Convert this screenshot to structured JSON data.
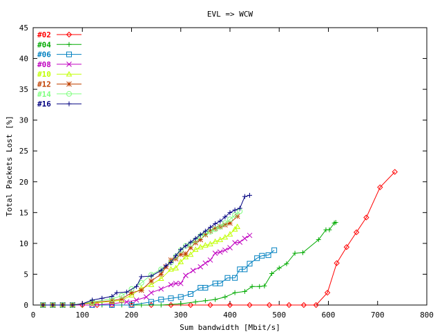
{
  "chart_data": {
    "type": "line",
    "title": "EVL => WCW",
    "xlabel": "Sum bandwidth [Mbit/s]",
    "ylabel": "Total Packets Lost [%]",
    "xlim": [
      0,
      800
    ],
    "ylim": [
      0,
      45
    ],
    "xticks": [
      0,
      100,
      200,
      300,
      400,
      500,
      600,
      700,
      800
    ],
    "yticks": [
      0,
      5,
      10,
      15,
      20,
      25,
      30,
      35,
      40,
      45
    ],
    "grid": false,
    "legend_position": "top-left",
    "series": [
      {
        "name": "#02",
        "color": "#ff0000",
        "marker": "diamond",
        "points": [
          [
            20,
            0
          ],
          [
            40,
            0
          ],
          [
            60,
            0
          ],
          [
            80,
            0
          ],
          [
            100,
            0
          ],
          [
            130,
            0
          ],
          [
            160,
            0
          ],
          [
            200,
            0
          ],
          [
            240,
            0
          ],
          [
            280,
            0
          ],
          [
            320,
            0
          ],
          [
            360,
            0
          ],
          [
            400,
            0
          ],
          [
            440,
            0
          ],
          [
            480,
            0
          ],
          [
            520,
            0
          ],
          [
            550,
            0
          ],
          [
            575,
            0
          ],
          [
            598,
            2
          ],
          [
            617,
            6.8
          ],
          [
            637,
            9.4
          ],
          [
            657,
            11.8
          ],
          [
            677,
            14.2
          ],
          [
            705,
            19.1
          ],
          [
            735,
            21.6
          ]
        ]
      },
      {
        "name": "#04",
        "color": "#00aa00",
        "marker": "plus",
        "points": [
          [
            20,
            0
          ],
          [
            40,
            0
          ],
          [
            60,
            0
          ],
          [
            80,
            0
          ],
          [
            100,
            0
          ],
          [
            140,
            0
          ],
          [
            180,
            0
          ],
          [
            220,
            0
          ],
          [
            260,
            0
          ],
          [
            300,
            0.2
          ],
          [
            330,
            0.5
          ],
          [
            350,
            0.7
          ],
          [
            370,
            0.9
          ],
          [
            390,
            1.3
          ],
          [
            410,
            2
          ],
          [
            430,
            2.2
          ],
          [
            445,
            3
          ],
          [
            460,
            3
          ],
          [
            470,
            3.1
          ],
          [
            485,
            5.1
          ],
          [
            500,
            6
          ],
          [
            515,
            6.7
          ],
          [
            532,
            8.4
          ],
          [
            548,
            8.5
          ],
          [
            580,
            10.6
          ],
          [
            595,
            12.2
          ],
          [
            602,
            12.2
          ],
          [
            612,
            13.3
          ],
          [
            615,
            13.4
          ]
        ]
      },
      {
        "name": "#06",
        "color": "#0080c0",
        "marker": "square",
        "points": [
          [
            20,
            0
          ],
          [
            40,
            0
          ],
          [
            60,
            0
          ],
          [
            80,
            0
          ],
          [
            120,
            0
          ],
          [
            160,
            0
          ],
          [
            200,
            0
          ],
          [
            240,
            0.5
          ],
          [
            260,
            0.9
          ],
          [
            280,
            1.1
          ],
          [
            300,
            1.3
          ],
          [
            320,
            1.8
          ],
          [
            340,
            2.8
          ],
          [
            350,
            2.8
          ],
          [
            370,
            3.5
          ],
          [
            380,
            3.5
          ],
          [
            395,
            4.4
          ],
          [
            410,
            4.4
          ],
          [
            420,
            5.8
          ],
          [
            430,
            5.8
          ],
          [
            440,
            6.7
          ],
          [
            455,
            7.6
          ],
          [
            465,
            8
          ],
          [
            478,
            8.1
          ],
          [
            490,
            8.9
          ]
        ]
      },
      {
        "name": "#08",
        "color": "#c000c0",
        "marker": "cross",
        "points": [
          [
            20,
            0
          ],
          [
            40,
            0
          ],
          [
            60,
            0
          ],
          [
            80,
            0
          ],
          [
            120,
            0
          ],
          [
            160,
            0.2
          ],
          [
            190,
            0.5
          ],
          [
            210,
            0.8
          ],
          [
            230,
            1.3
          ],
          [
            240,
            2
          ],
          [
            260,
            2.6
          ],
          [
            280,
            3.3
          ],
          [
            290,
            3.5
          ],
          [
            300,
            3.5
          ],
          [
            310,
            4.8
          ],
          [
            325,
            5.6
          ],
          [
            340,
            6.2
          ],
          [
            350,
            6.8
          ],
          [
            360,
            7.3
          ],
          [
            370,
            8.4
          ],
          [
            380,
            8.6
          ],
          [
            390,
            8.9
          ],
          [
            400,
            9.3
          ],
          [
            410,
            10.1
          ],
          [
            420,
            10.2
          ],
          [
            430,
            10.8
          ],
          [
            440,
            11.3
          ]
        ]
      },
      {
        "name": "#10",
        "color": "#c0ff00",
        "marker": "triangle",
        "points": [
          [
            20,
            0
          ],
          [
            40,
            0
          ],
          [
            60,
            0
          ],
          [
            80,
            0
          ],
          [
            120,
            0.3
          ],
          [
            160,
            0.6
          ],
          [
            180,
            0.8
          ],
          [
            200,
            1.6
          ],
          [
            220,
            2.7
          ],
          [
            240,
            3.3
          ],
          [
            260,
            4.3
          ],
          [
            280,
            5.8
          ],
          [
            290,
            6
          ],
          [
            300,
            7
          ],
          [
            310,
            7.8
          ],
          [
            320,
            8.2
          ],
          [
            330,
            9
          ],
          [
            340,
            9.4
          ],
          [
            350,
            9.7
          ],
          [
            360,
            9.9
          ],
          [
            370,
            10.3
          ],
          [
            380,
            10.6
          ],
          [
            390,
            11
          ],
          [
            400,
            11.5
          ],
          [
            410,
            12.3
          ],
          [
            415,
            12.7
          ]
        ]
      },
      {
        "name": "#12",
        "color": "#c04000",
        "marker": "star",
        "points": [
          [
            20,
            0
          ],
          [
            40,
            0
          ],
          [
            60,
            0
          ],
          [
            80,
            0
          ],
          [
            120,
            0.4
          ],
          [
            160,
            0.7
          ],
          [
            180,
            1
          ],
          [
            200,
            2
          ],
          [
            220,
            2.4
          ],
          [
            240,
            3.9
          ],
          [
            260,
            5
          ],
          [
            270,
            6.2
          ],
          [
            280,
            7.3
          ],
          [
            290,
            7.5
          ],
          [
            300,
            8.2
          ],
          [
            310,
            8.3
          ],
          [
            320,
            9.3
          ],
          [
            330,
            10.1
          ],
          [
            340,
            10.6
          ],
          [
            350,
            11.4
          ],
          [
            360,
            12
          ],
          [
            370,
            12.4
          ],
          [
            380,
            12.7
          ],
          [
            390,
            13
          ],
          [
            400,
            13.3
          ],
          [
            415,
            14.4
          ]
        ]
      },
      {
        "name": "#14",
        "color": "#80ff80",
        "marker": "circle",
        "points": [
          [
            20,
            0
          ],
          [
            40,
            0
          ],
          [
            60,
            0
          ],
          [
            80,
            0
          ],
          [
            120,
            0.5
          ],
          [
            160,
            1
          ],
          [
            180,
            1.5
          ],
          [
            200,
            2.6
          ],
          [
            220,
            3.6
          ],
          [
            240,
            4.9
          ],
          [
            260,
            5.8
          ],
          [
            280,
            6.9
          ],
          [
            290,
            7.9
          ],
          [
            300,
            8.9
          ],
          [
            310,
            9.6
          ],
          [
            320,
            9.9
          ],
          [
            330,
            10.5
          ],
          [
            340,
            11.2
          ],
          [
            350,
            11.6
          ],
          [
            360,
            11.9
          ],
          [
            370,
            12.3
          ],
          [
            380,
            12.7
          ],
          [
            390,
            13.3
          ],
          [
            400,
            13.9
          ],
          [
            410,
            14.6
          ],
          [
            420,
            15.2
          ]
        ]
      },
      {
        "name": "#16",
        "color": "#000080",
        "marker": "plus",
        "points": [
          [
            20,
            0
          ],
          [
            40,
            0
          ],
          [
            60,
            0
          ],
          [
            80,
            0
          ],
          [
            100,
            0.2
          ],
          [
            120,
            0.8
          ],
          [
            140,
            1.1
          ],
          [
            160,
            1.4
          ],
          [
            170,
            2
          ],
          [
            190,
            2.1
          ],
          [
            210,
            3
          ],
          [
            220,
            4.6
          ],
          [
            240,
            4.7
          ],
          [
            260,
            5.6
          ],
          [
            270,
            6.4
          ],
          [
            280,
            6.9
          ],
          [
            290,
            8
          ],
          [
            300,
            9
          ],
          [
            310,
            9.6
          ],
          [
            320,
            10.2
          ],
          [
            330,
            10.8
          ],
          [
            340,
            11.4
          ],
          [
            350,
            12
          ],
          [
            360,
            12.6
          ],
          [
            370,
            13.2
          ],
          [
            380,
            13.6
          ],
          [
            390,
            14.3
          ],
          [
            400,
            15
          ],
          [
            410,
            15.4
          ],
          [
            420,
            15.7
          ],
          [
            430,
            17.6
          ],
          [
            440,
            17.8
          ]
        ]
      }
    ]
  }
}
